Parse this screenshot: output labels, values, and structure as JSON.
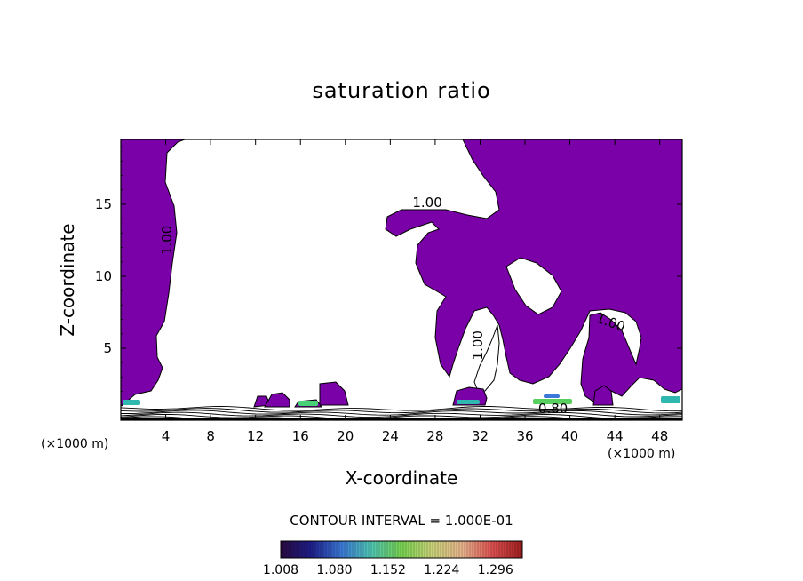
{
  "chart_data": {
    "type": "heatmap",
    "title": "saturation ratio",
    "xlabel": "X-coordinate",
    "ylabel": "Z-coordinate",
    "x_unit_label": "(×1000 m)",
    "x_unit_label_right": "(×1000 m)",
    "xlim": [
      0,
      50
    ],
    "ylim": [
      0,
      19.5
    ],
    "xticks": [
      4,
      8,
      12,
      16,
      20,
      24,
      28,
      32,
      36,
      40,
      44,
      48
    ],
    "yticks": [
      5,
      10,
      15
    ],
    "fill_color": "#7a00a8",
    "contour_interval_text": "CONTOUR INTERVAL = 1.000E-01",
    "contour_labels": [
      {
        "text": "1.00",
        "x": 27.3,
        "y": 14.8,
        "rotate": 0
      },
      {
        "text": "1.00",
        "x": 4.5,
        "y": 12.5,
        "rotate": -90
      },
      {
        "text": "1.00",
        "x": 32.2,
        "y": 5.2,
        "rotate": -90
      },
      {
        "text": "1.00",
        "x": 43.5,
        "y": 6.5,
        "rotate": 20
      },
      {
        "text": "0.80",
        "x": 38.5,
        "y": 0.5,
        "rotate": 0
      }
    ],
    "colorbar": {
      "min": 1.008,
      "max": 1.332,
      "tick_labels": [
        "1.008",
        "1.080",
        "1.152",
        "1.224",
        "1.296"
      ],
      "colors": [
        "#2a0a40",
        "#1e1e8c",
        "#3c78d8",
        "#50c8b4",
        "#78d250",
        "#c8d278",
        "#e6b48c",
        "#dc5050",
        "#a01e1e"
      ]
    }
  }
}
